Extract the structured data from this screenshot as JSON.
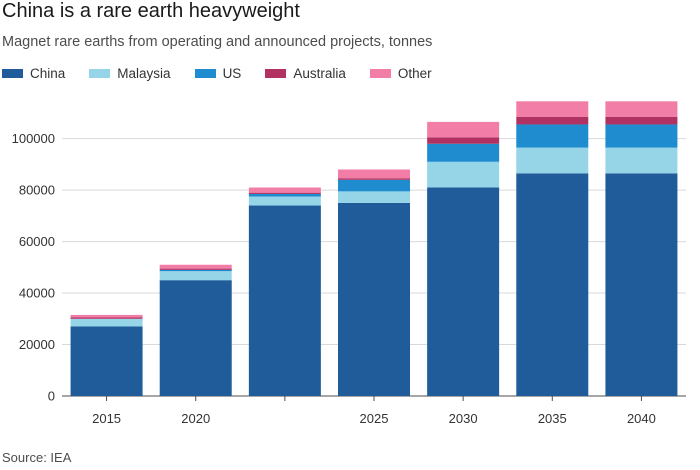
{
  "chart_data": {
    "type": "bar",
    "stacked": true,
    "title": "China is a rare earth heavyweight",
    "subtitle": "Magnet rare earths from operating and announced projects, tonnes",
    "categories": [
      "2015",
      "2020",
      "",
      "2025",
      "2030",
      "2035",
      "2040"
    ],
    "series": [
      {
        "name": "China",
        "color": "#1f5c99",
        "values": [
          27000,
          45000,
          74000,
          75000,
          81000,
          86500,
          86500
        ]
      },
      {
        "name": "Malaysia",
        "color": "#96d5e8",
        "values": [
          3000,
          3500,
          3500,
          4500,
          10000,
          10000,
          10000
        ]
      },
      {
        "name": "US",
        "color": "#1f8ccf",
        "values": [
          0,
          500,
          1000,
          4500,
          7000,
          9000,
          9000
        ]
      },
      {
        "name": "Australia",
        "color": "#b03162",
        "values": [
          500,
          500,
          500,
          500,
          2500,
          3000,
          3000
        ]
      },
      {
        "name": "Other",
        "color": "#f27ea8",
        "values": [
          1000,
          1500,
          2000,
          3500,
          6000,
          6000,
          6000
        ]
      }
    ],
    "ylim": [
      0,
      115000
    ],
    "yticks": [
      "0",
      "20000",
      "40000",
      "60000",
      "80000",
      "100000"
    ],
    "ytick_values": [
      0,
      20000,
      40000,
      60000,
      80000,
      100000
    ],
    "grid": true,
    "legend_placement": "top-left",
    "source": "Source: IEA"
  }
}
